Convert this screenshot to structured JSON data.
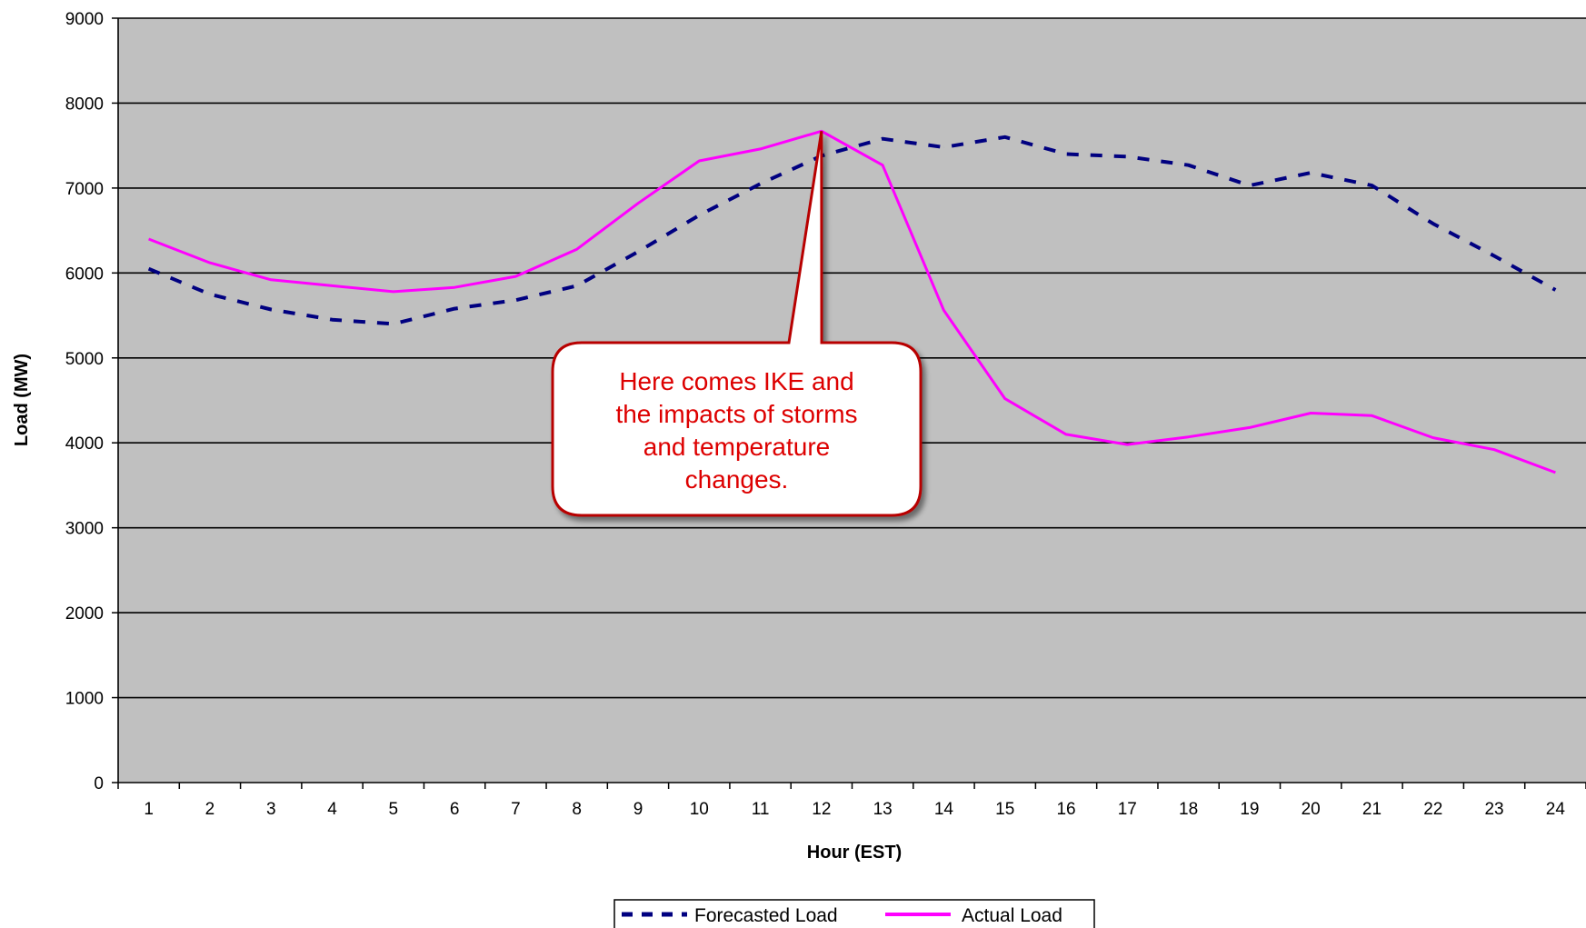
{
  "chart_data": {
    "type": "line",
    "title": "",
    "xlabel": "Hour (EST)",
    "ylabel": "Load (MW)",
    "ylim": [
      0,
      9000
    ],
    "yticks": [
      0,
      1000,
      2000,
      3000,
      4000,
      5000,
      6000,
      7000,
      8000,
      9000
    ],
    "x": [
      1,
      2,
      3,
      4,
      5,
      6,
      7,
      8,
      9,
      10,
      11,
      12,
      13,
      14,
      15,
      16,
      17,
      18,
      19,
      20,
      21,
      22,
      23,
      24
    ],
    "grid": "horizontal",
    "plot_background": "#c0c0c0",
    "legend_position": "bottom",
    "series": [
      {
        "name": "Forecasted Load",
        "color": "#000080",
        "style": "dashed",
        "values": [
          6050,
          5750,
          5570,
          5450,
          5400,
          5580,
          5680,
          5850,
          6250,
          6680,
          7050,
          7380,
          7580,
          7480,
          7600,
          7400,
          7370,
          7270,
          7030,
          7180,
          7030,
          6580,
          6200,
          5800
        ]
      },
      {
        "name": "Actual Load",
        "color": "#ff00ff",
        "style": "solid",
        "values": [
          6400,
          6120,
          5920,
          5850,
          5780,
          5830,
          5960,
          6280,
          6820,
          7320,
          7460,
          7670,
          7270,
          5560,
          4520,
          4100,
          3980,
          4070,
          4180,
          4350,
          4320,
          4060,
          3920,
          3650
        ]
      }
    ],
    "annotation": {
      "text_lines": [
        "Here comes IKE and",
        "the impacts of storms",
        "and temperature",
        "changes."
      ],
      "color": "#dd0000",
      "border_color": "#b80000",
      "fill": "#ffffff",
      "points_to_x": 12,
      "points_to_y": 7670
    }
  }
}
